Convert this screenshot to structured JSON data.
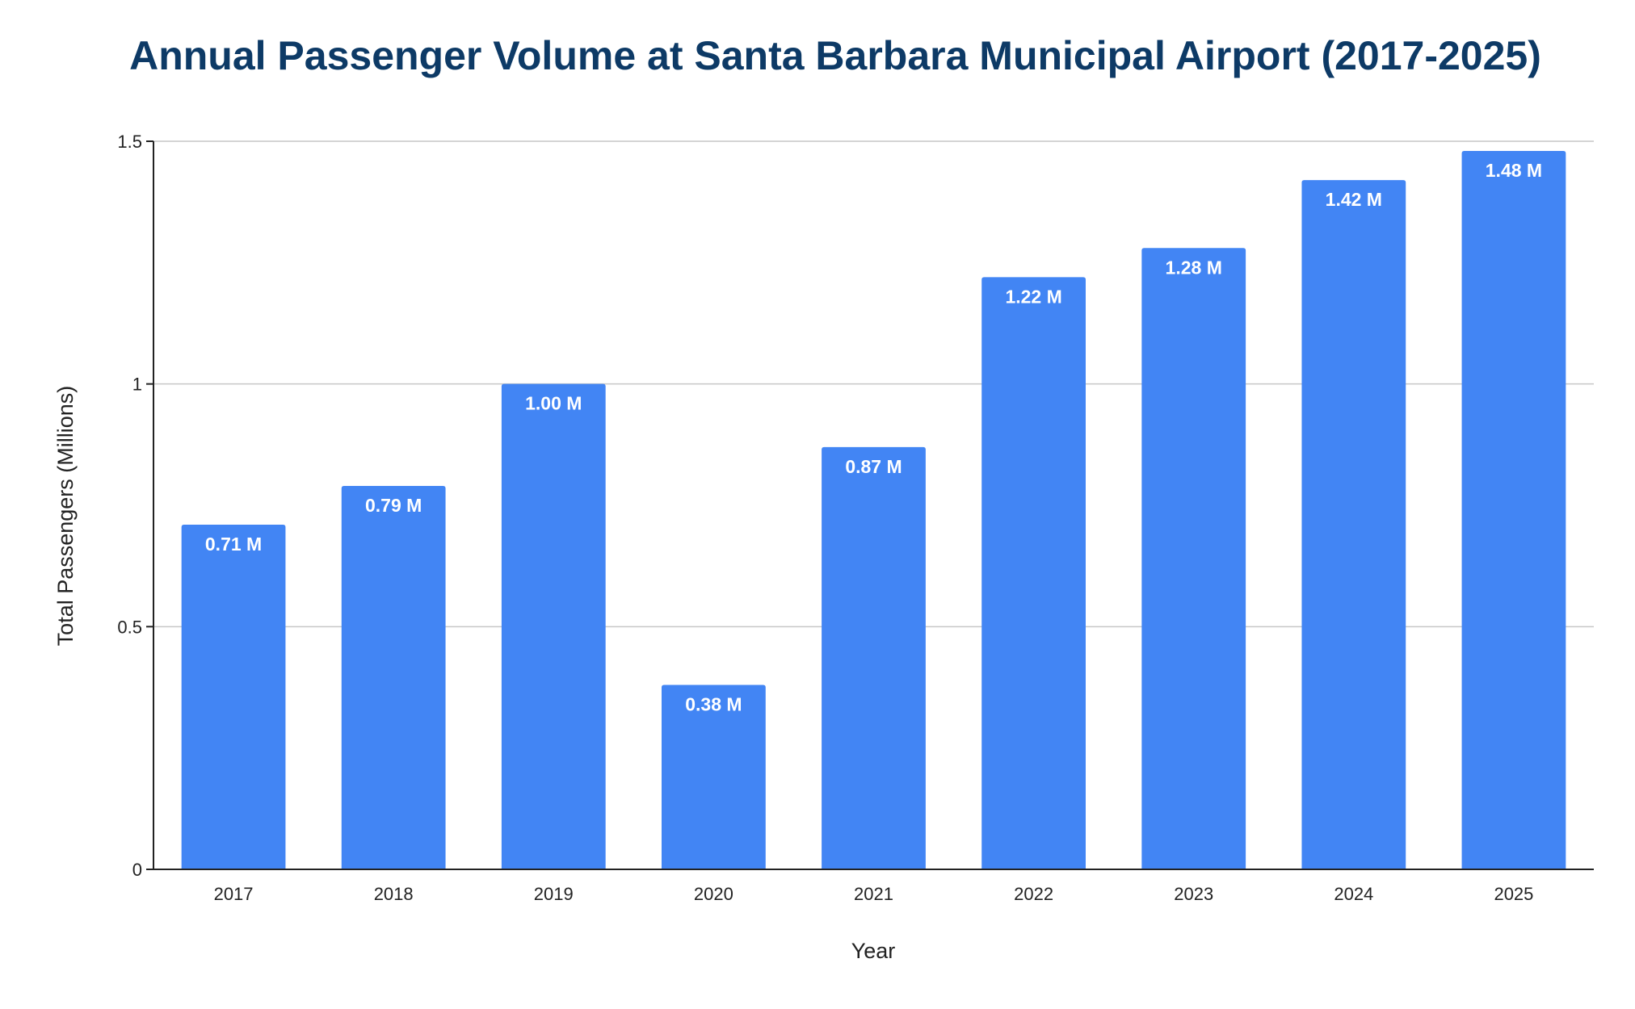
{
  "chart_data": {
    "type": "bar",
    "title": "Annual Passenger Volume at Santa Barbara Municipal Airport (2017-2025)",
    "xlabel": "Year",
    "ylabel": "Total Passengers (Millions)",
    "categories": [
      "2017",
      "2018",
      "2019",
      "2020",
      "2021",
      "2022",
      "2023",
      "2024",
      "2025"
    ],
    "values": [
      0.71,
      0.79,
      1.0,
      0.38,
      0.87,
      1.22,
      1.28,
      1.42,
      1.48
    ],
    "data_labels": [
      "0.71 M",
      "0.79 M",
      "1.00 M",
      "0.38 M",
      "0.87 M",
      "1.22 M",
      "1.28 M",
      "1.42 M",
      "1.48 M"
    ],
    "ylim": [
      0,
      1.5
    ],
    "yticks": [
      0,
      0.5,
      1,
      1.5
    ],
    "ytick_labels": [
      "0",
      "0.5",
      "1",
      "1.5"
    ],
    "grid": true,
    "legend": "none",
    "bar_color": "#4285f4",
    "title_color": "#0d3a66"
  }
}
